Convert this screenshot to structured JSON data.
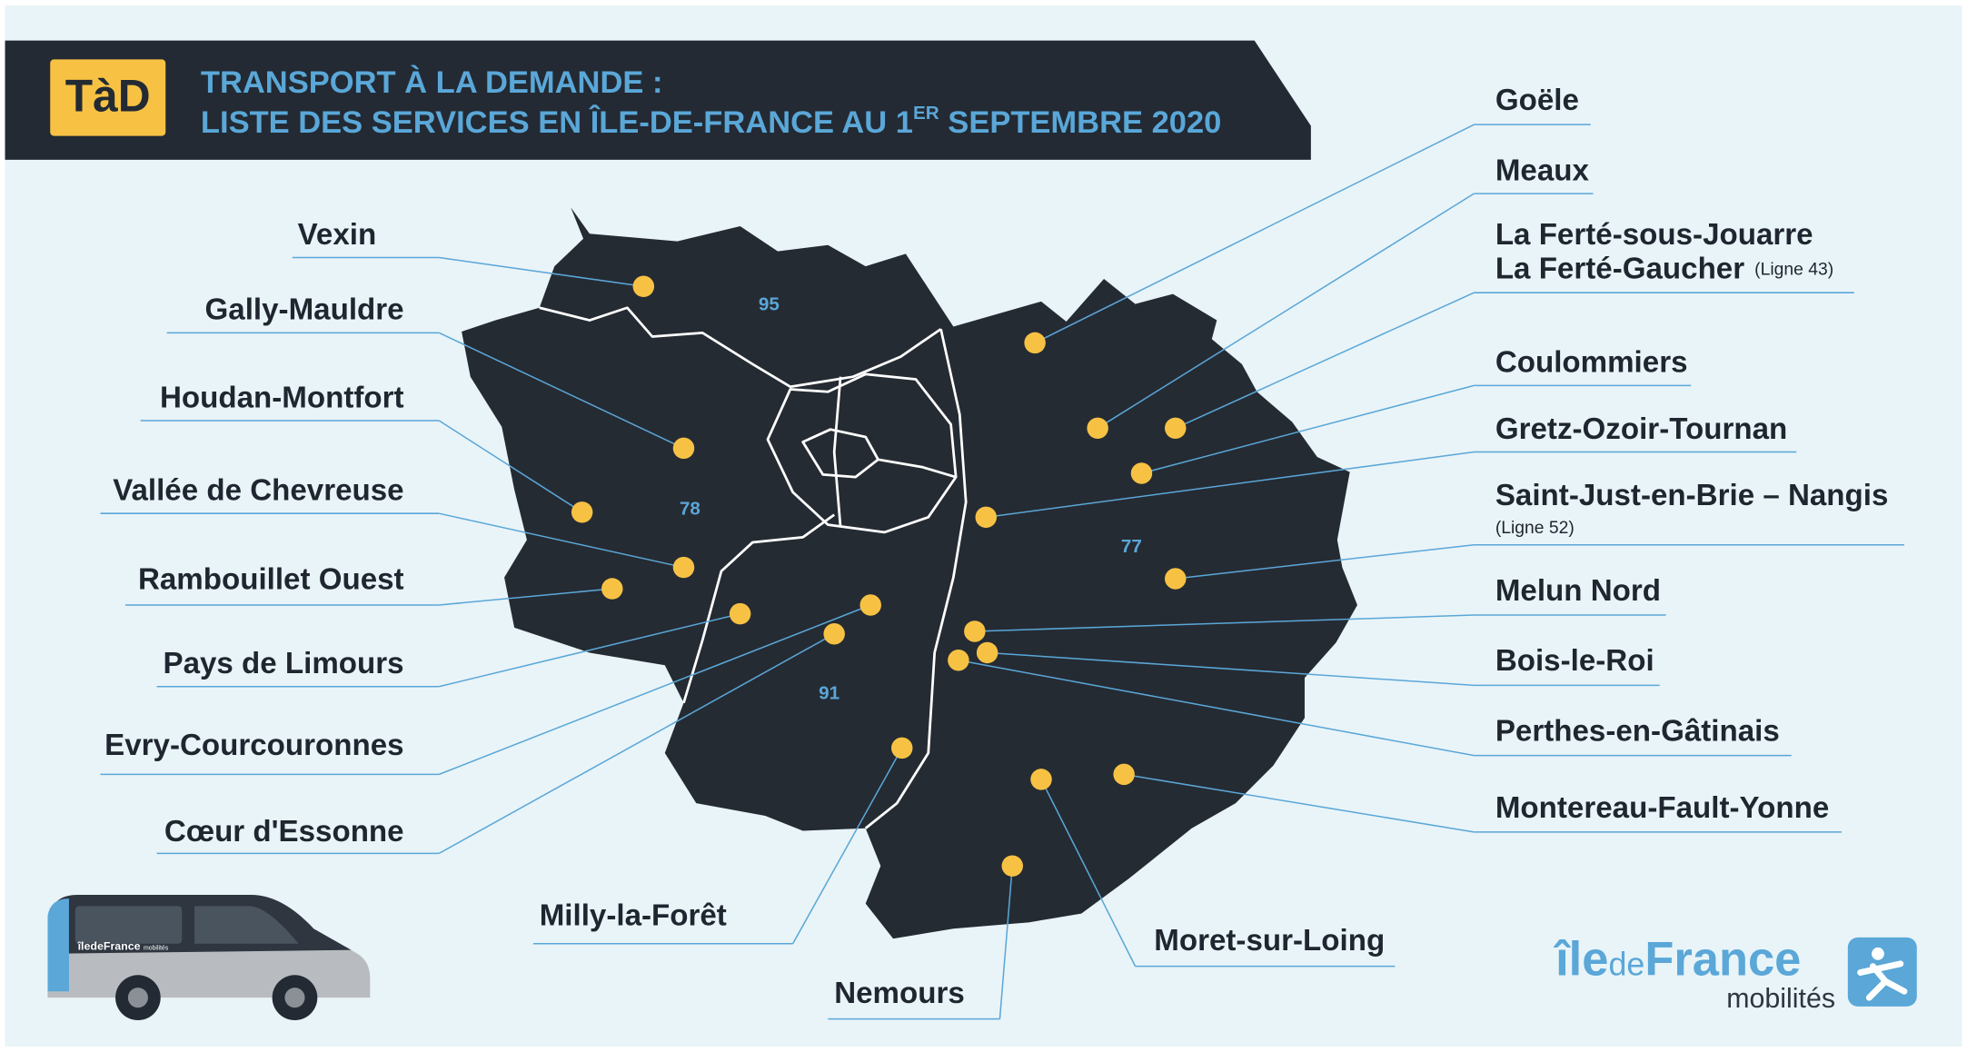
{
  "header": {
    "badge": "TàD",
    "title_line1": "TRANSPORT À LA DEMANDE :",
    "title_line2": {
      "before": "LISTE DES SERVICES EN ÎLE-DE-FRANCE AU 1",
      "superscript": "ER",
      "after": " SEPTEMBRE 2020"
    }
  },
  "departments": [
    "95",
    "78",
    "77",
    "91"
  ],
  "services": [
    {
      "name": "Vexin"
    },
    {
      "name": "Gally-Mauldre"
    },
    {
      "name": "Houdan-Montfort"
    },
    {
      "name": "Vallée de Chevreuse"
    },
    {
      "name": "Rambouillet Ouest"
    },
    {
      "name": "Pays de Limours"
    },
    {
      "name": "Evry-Courcouronnes"
    },
    {
      "name": "Cœur d'Essonne"
    },
    {
      "name": "Milly-la-Forêt"
    },
    {
      "name": "Nemours"
    },
    {
      "name": "Moret-sur-Loing"
    },
    {
      "name": "Goële"
    },
    {
      "name": "Meaux"
    },
    {
      "name": "La Ferté-sous-Jouarre",
      "name2": "La Ferté-Gaucher",
      "note": "(Ligne 43)"
    },
    {
      "name": "Coulommiers"
    },
    {
      "name": "Gretz-Ozoir-Tournan"
    },
    {
      "name": "Saint-Just-en-Brie – Nangis",
      "note": "(Ligne 52)"
    },
    {
      "name": "Melun Nord"
    },
    {
      "name": "Bois-le-Roi"
    },
    {
      "name": "Perthes-en-Gâtinais"
    },
    {
      "name": "Montereau-Fault-Yonne"
    }
  ],
  "van": {
    "brand": "îledeFrance",
    "sub": "mobilités"
  },
  "logo": {
    "ile": "île",
    "de": "de",
    "france": "France",
    "mobilites": "mobilités"
  }
}
